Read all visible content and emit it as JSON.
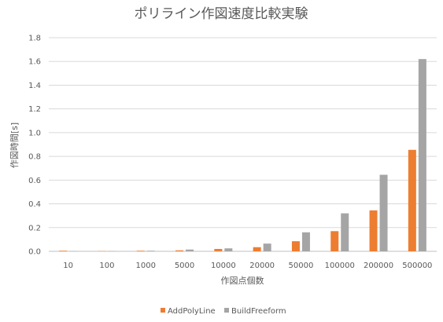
{
  "chart_data": {
    "type": "bar",
    "title": "ポリライン作図速度比較実験",
    "xlabel": "作図点個数",
    "ylabel": "作図時間[s]",
    "categories": [
      "10",
      "100",
      "1000",
      "5000",
      "10000",
      "20000",
      "50000",
      "100000",
      "200000",
      "500000"
    ],
    "series": [
      {
        "name": "AddPolyLine",
        "color": "#ED7D31",
        "values": [
          0.005,
          0.002,
          0.005,
          0.008,
          0.02,
          0.035,
          0.085,
          0.17,
          0.345,
          0.855
        ]
      },
      {
        "name": "BuildFreeform",
        "color": "#A5A5A5",
        "values": [
          0.002,
          0.002,
          0.005,
          0.015,
          0.025,
          0.065,
          0.16,
          0.32,
          0.645,
          1.62
        ]
      }
    ],
    "ylim": [
      0,
      1.8
    ],
    "yticks": [
      "0.0",
      "0.2",
      "0.4",
      "0.6",
      "0.8",
      "1.0",
      "1.2",
      "1.4",
      "1.6",
      "1.8"
    ],
    "grid": true,
    "legend_position": "bottom"
  }
}
